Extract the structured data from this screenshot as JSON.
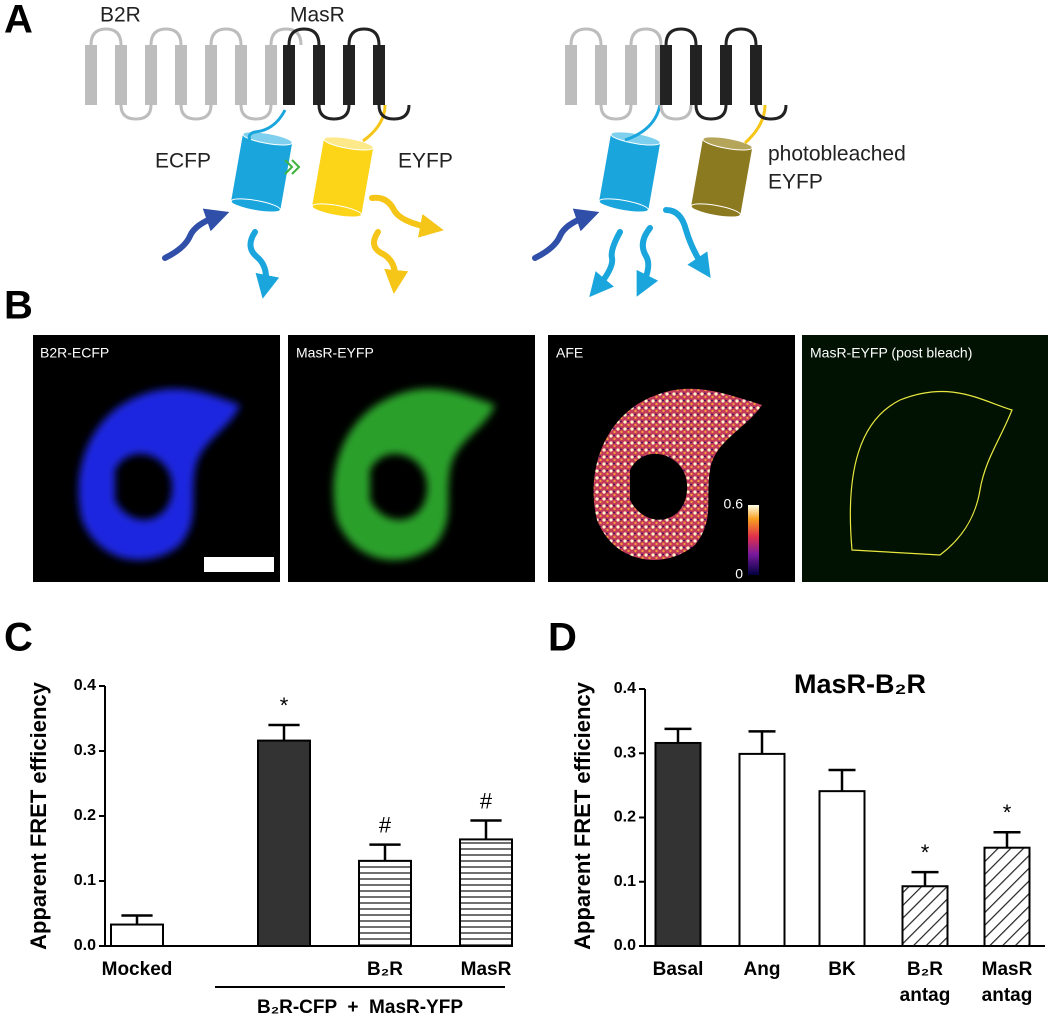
{
  "panel_labels": [
    "A",
    "B",
    "C",
    "D"
  ],
  "diagram": {
    "left": {
      "receptor_1": "B2R",
      "receptor_2": "MasR",
      "donor": "ECFP",
      "acceptor": "EYFP"
    },
    "right": {
      "acceptor": [
        "photobleached",
        "EYFP"
      ]
    }
  },
  "images": {
    "labels": [
      "B2R-ECFP",
      "MasR-EYFP",
      "AFE",
      "MasR-EYFP (post bleach)"
    ],
    "colorbar": {
      "lim": [
        0,
        0.6
      ],
      "ticks": [
        0,
        0.6
      ]
    }
  },
  "chart_data": [
    {
      "type": "bar",
      "ylabel": "Apparent FRET efficiency",
      "categories": [
        "Mocked",
        null,
        "B₂R",
        "MasR"
      ],
      "group_label": "B₂R-CFP  +  MasR-YFP",
      "values": [
        0.033,
        0.316,
        0.131,
        0.164
      ],
      "errors": [
        0.014,
        0.024,
        0.025,
        0.029
      ],
      "annotations": [
        null,
        "*",
        "#",
        "#"
      ],
      "fills": [
        "#ffffff",
        "#333333",
        "horizontal",
        "horizontal"
      ],
      "ylim": [
        0,
        0.4
      ],
      "yticks": [
        {
          "value": 0,
          "label": "0.0"
        },
        0.1,
        0.2,
        0.3,
        0.4
      ]
    },
    {
      "type": "bar",
      "title": "MasR-B₂R",
      "ylabel": "Apparent FRET efficiency",
      "categories": [
        "Basal",
        "Ang",
        "BK",
        "B₂R antag",
        "MasR antag"
      ],
      "values": [
        0.316,
        0.299,
        0.241,
        0.093,
        0.153
      ],
      "errors": [
        0.022,
        0.035,
        0.033,
        0.022,
        0.024
      ],
      "annotations": [
        null,
        null,
        null,
        "*",
        "*"
      ],
      "fills": [
        "#333333",
        "#ffffff",
        "#ffffff",
        "diagonal",
        "diagonal"
      ],
      "ylim": [
        0,
        0.4
      ],
      "yticks": [
        {
          "value": 0,
          "label": "0.0"
        },
        0.1,
        0.2,
        0.3,
        0.4
      ]
    }
  ]
}
